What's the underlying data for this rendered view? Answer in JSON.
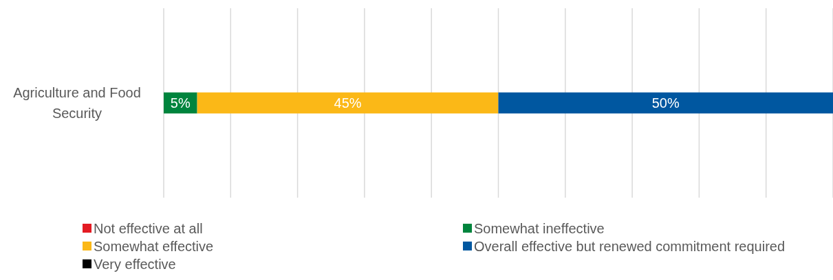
{
  "chart_data": {
    "type": "bar",
    "orientation": "horizontal",
    "stacked": true,
    "categories": [
      "Agriculture and Food Security"
    ],
    "series": [
      {
        "name": "Not effective at all",
        "color": "#e31b23",
        "values": [
          0
        ],
        "value_labels": [
          null
        ]
      },
      {
        "name": "Somewhat ineffective",
        "color": "#00843d",
        "values": [
          5
        ],
        "value_labels": [
          "5%"
        ]
      },
      {
        "name": "Somewhat effective",
        "color": "#fbb817",
        "values": [
          45
        ],
        "value_labels": [
          "45%"
        ]
      },
      {
        "name": "Overall effective but renewed commitment required",
        "color": "#0057a0",
        "values": [
          50
        ],
        "value_labels": [
          "50%"
        ]
      },
      {
        "name": "Very effective",
        "color": "#000000",
        "values": [
          0
        ],
        "value_labels": [
          null
        ]
      }
    ],
    "xlim": [
      0,
      100
    ],
    "xticks": [
      {
        "value": 0,
        "label": null
      },
      {
        "value": 10,
        "label": null
      },
      {
        "value": 20,
        "label": null
      },
      {
        "value": 30,
        "label": null
      },
      {
        "value": 40,
        "label": null
      },
      {
        "value": 50,
        "label": null
      },
      {
        "value": 60,
        "label": null
      },
      {
        "value": 70,
        "label": null
      },
      {
        "value": 80,
        "label": null
      },
      {
        "value": 90,
        "label": null
      },
      {
        "value": 100,
        "label": null
      }
    ],
    "grid": "x",
    "legend": "bottom",
    "tick_labels": "y"
  }
}
